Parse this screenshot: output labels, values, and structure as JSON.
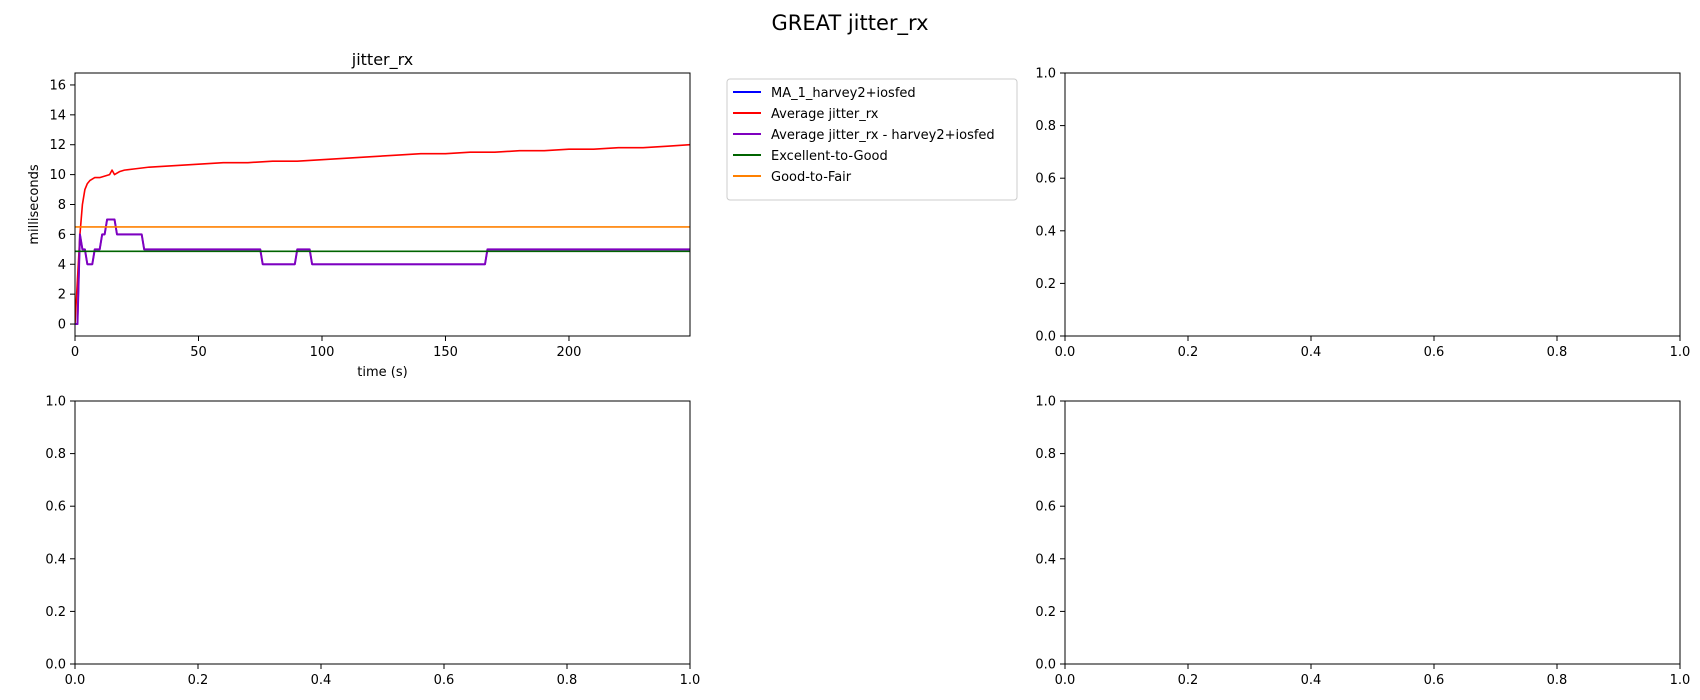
{
  "suptitle": "GREAT jitter_rx",
  "chart_data": [
    {
      "type": "line",
      "title": "jitter_rx",
      "xlabel": "time (s)",
      "ylabel": "milliseconds",
      "xlim": [
        0,
        249
      ],
      "ylim": [
        -0.8,
        16.8
      ],
      "xticks": [
        0,
        50,
        100,
        150,
        200
      ],
      "yticks": [
        0,
        2,
        4,
        6,
        8,
        10,
        12,
        14,
        16
      ],
      "grid": false,
      "legend_position": "outside-right",
      "series": [
        {
          "name": "MA_1_harvey2+iosfed",
          "color": "#0000ff",
          "x": [
            0,
            1,
            2,
            3,
            4,
            5,
            6,
            7,
            8,
            9,
            10,
            11,
            12,
            13,
            14,
            15,
            16,
            17,
            18,
            27,
            28,
            29,
            75,
            76,
            89,
            90,
            95,
            96,
            166,
            167,
            249
          ],
          "y": [
            0,
            0,
            6,
            5,
            5,
            4,
            4,
            4,
            5,
            5,
            5,
            6,
            6,
            7,
            7,
            7,
            7,
            6,
            6,
            6,
            5,
            5,
            5,
            4,
            4,
            5,
            5,
            4,
            4,
            5,
            5
          ]
        },
        {
          "name": "Average jitter_rx",
          "color": "#ff0000",
          "x": [
            0,
            1,
            2,
            3,
            4,
            5,
            6,
            8,
            10,
            12,
            14,
            15,
            16,
            18,
            20,
            25,
            30,
            40,
            50,
            60,
            70,
            80,
            90,
            100,
            110,
            120,
            130,
            140,
            150,
            160,
            170,
            180,
            190,
            200,
            210,
            220,
            230,
            240,
            249
          ],
          "y": [
            0,
            3,
            6,
            8,
            9,
            9.4,
            9.6,
            9.8,
            9.8,
            9.9,
            10.0,
            10.3,
            10.0,
            10.2,
            10.3,
            10.4,
            10.5,
            10.6,
            10.7,
            10.8,
            10.8,
            10.9,
            10.9,
            11.0,
            11.1,
            11.2,
            11.3,
            11.4,
            11.4,
            11.5,
            11.5,
            11.6,
            11.6,
            11.7,
            11.7,
            11.8,
            11.8,
            11.9,
            12.0
          ]
        },
        {
          "name": "Average jitter_rx - harvey2+iosfed",
          "color": "#7f00bf",
          "x": [
            0,
            1,
            2,
            3,
            4,
            5,
            6,
            7,
            8,
            9,
            10,
            11,
            12,
            13,
            14,
            15,
            16,
            17,
            18,
            27,
            28,
            29,
            75,
            76,
            89,
            90,
            95,
            96,
            166,
            167,
            249
          ],
          "y": [
            0,
            0,
            6,
            5,
            5,
            4,
            4,
            4,
            5,
            5,
            5,
            6,
            6,
            7,
            7,
            7,
            7,
            6,
            6,
            6,
            5,
            5,
            5,
            4,
            4,
            5,
            5,
            4,
            4,
            5,
            5
          ]
        },
        {
          "name": "Excellent-to-Good",
          "color": "#006400",
          "x": [
            0,
            249
          ],
          "y": [
            4.87,
            4.87
          ]
        },
        {
          "name": "Good-to-Fair",
          "color": "#ff8000",
          "x": [
            0,
            249
          ],
          "y": [
            6.5,
            6.5
          ]
        }
      ]
    },
    {
      "type": "line",
      "xlim": [
        0,
        1
      ],
      "ylim": [
        0,
        1
      ],
      "xticks": [
        0,
        0.2,
        0.4,
        0.6,
        0.8,
        1.0
      ],
      "yticks": [
        0,
        0.2,
        0.4,
        0.6,
        0.8,
        1.0
      ],
      "series": []
    },
    {
      "type": "line",
      "xlim": [
        0,
        1
      ],
      "ylim": [
        0,
        1
      ],
      "xticks": [
        0,
        0.2,
        0.4,
        0.6,
        0.8,
        1.0
      ],
      "yticks": [
        0,
        0.2,
        0.4,
        0.6,
        0.8,
        1.0
      ],
      "series": []
    },
    {
      "type": "line",
      "xlim": [
        0,
        1
      ],
      "ylim": [
        0,
        1
      ],
      "xticks": [
        0,
        0.2,
        0.4,
        0.6,
        0.8,
        1.0
      ],
      "yticks": [
        0,
        0.2,
        0.4,
        0.6,
        0.8,
        1.0
      ],
      "series": []
    }
  ]
}
